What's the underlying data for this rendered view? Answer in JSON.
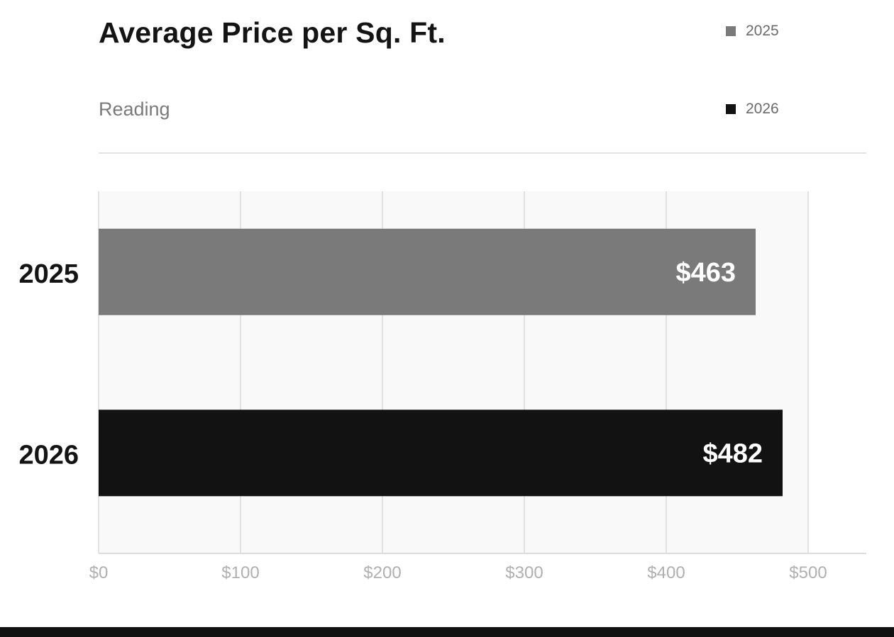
{
  "chart_data": {
    "type": "bar",
    "orientation": "horizontal",
    "title": "Average Price per Sq. Ft.",
    "subtitle": "Reading",
    "categories": [
      "2025",
      "2026"
    ],
    "values": [
      463,
      482
    ],
    "value_labels": [
      "$463",
      "$482"
    ],
    "colors": [
      "#7a7a7a",
      "#121212"
    ],
    "xlim": [
      0,
      500
    ],
    "x_ticks": [
      0,
      100,
      200,
      300,
      400,
      500
    ],
    "x_tick_labels": [
      "$0",
      "$100",
      "$200",
      "$300",
      "$400",
      "$500"
    ],
    "grid": true,
    "legend": {
      "placement": "top-right",
      "entries": [
        {
          "label": "2025",
          "color": "#7a7a7a"
        },
        {
          "label": "2026",
          "color": "#121212"
        }
      ]
    }
  }
}
